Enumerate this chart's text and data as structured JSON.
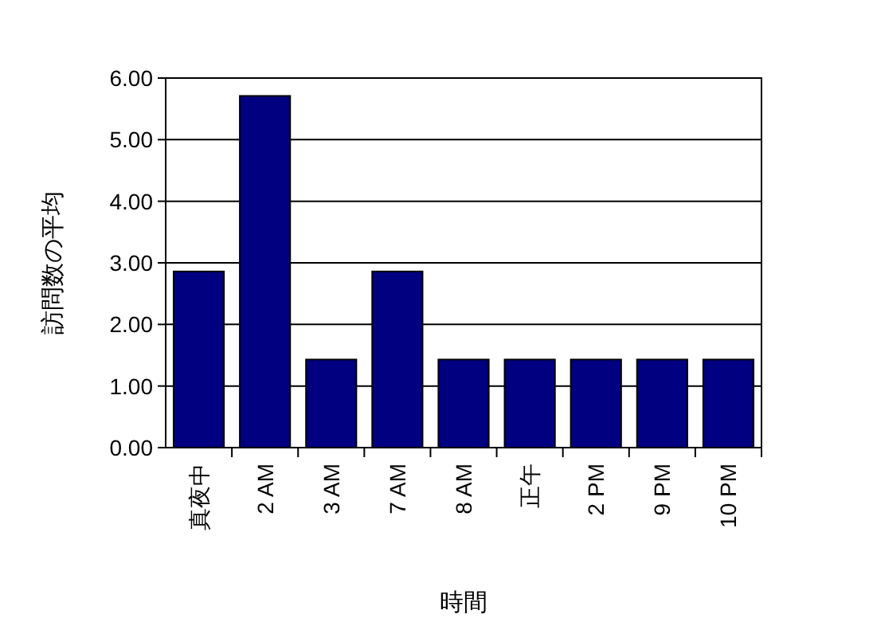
{
  "chart_data": {
    "type": "bar",
    "xlabel": "時間",
    "ylabel": "訪問数の平均",
    "categories": [
      "真夜中",
      "2 AM",
      "3 AM",
      "7 AM",
      "8 AM",
      "正午",
      "2 PM",
      "9 PM",
      "10 PM"
    ],
    "values": [
      2.86,
      5.71,
      1.43,
      2.86,
      1.43,
      1.43,
      1.43,
      1.43,
      1.43
    ],
    "color": "#000080",
    "ylim": [
      0,
      6
    ],
    "yticks": [
      {
        "value": 0,
        "label": "0.00"
      },
      {
        "value": 1,
        "label": "1.00"
      },
      {
        "value": 2,
        "label": "2.00"
      },
      {
        "value": 3,
        "label": "3.00"
      },
      {
        "value": 4,
        "label": "4.00"
      },
      {
        "value": 5,
        "label": "5.00"
      },
      {
        "value": 6,
        "label": "6.00"
      }
    ],
    "grid": true
  }
}
